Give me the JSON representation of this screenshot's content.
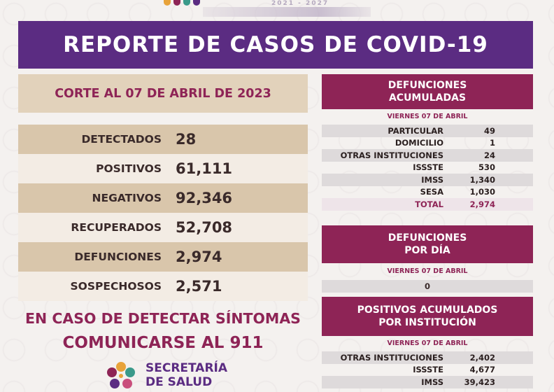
{
  "header": {
    "title": "REPORTE DE CASOS DE COVID-19",
    "years": "2021 - 2027"
  },
  "corte": "CORTE AL 07 DE ABRIL DE 2023",
  "stats": [
    {
      "label": "DETECTADOS",
      "value": "28"
    },
    {
      "label": "POSITIVOS",
      "value": "61,111"
    },
    {
      "label": "NEGATIVOS",
      "value": "92,346"
    },
    {
      "label": "RECUPERADOS",
      "value": "52,708"
    },
    {
      "label": "DEFUNCIONES",
      "value": "2,974"
    },
    {
      "label": "SOSPECHOSOS",
      "value": "2,571"
    }
  ],
  "cta": {
    "line1": "EN CASO DE DETECTAR SÍNTOMAS",
    "line2": "COMUNICARSE AL 911"
  },
  "logo": {
    "line1": "SECRETARÍA",
    "line2": "DE SALUD"
  },
  "defunciones_acumuladas": {
    "title_line1": "DEFUNCIONES",
    "title_line2": "ACUMULADAS",
    "date": "VIERNES 07 DE ABRIL",
    "rows": [
      {
        "label": "PARTICULAR",
        "value": "49"
      },
      {
        "label": "DOMICILIO",
        "value": "1"
      },
      {
        "label": "OTRAS INSTITUCIONES",
        "value": "24"
      },
      {
        "label": "ISSSTE",
        "value": "530"
      },
      {
        "label": "IMSS",
        "value": "1,340"
      },
      {
        "label": "SESA",
        "value": "1,030"
      }
    ],
    "total_label": "TOTAL",
    "total_value": "2,974"
  },
  "defunciones_dia": {
    "title_line1": "DEFUNCIONES",
    "title_line2": "POR DÍA",
    "date": "VIERNES 07  DE ABRIL",
    "value": "0"
  },
  "positivos_institucion": {
    "title_line1": "POSITIVOS ACUMULADOS",
    "title_line2": "POR INSTITUCIÓN",
    "date": "VIERNES 07 DE ABRIL",
    "rows": [
      {
        "label": "OTRAS INSTITUCIONES",
        "value": "2,402"
      },
      {
        "label": "ISSSTE",
        "value": "4,677"
      },
      {
        "label": "IMSS",
        "value": "39,423"
      }
    ]
  },
  "colors": {
    "purple": "#5b2c82",
    "magenta": "#8e2456",
    "tan": "#d9c6ab"
  }
}
